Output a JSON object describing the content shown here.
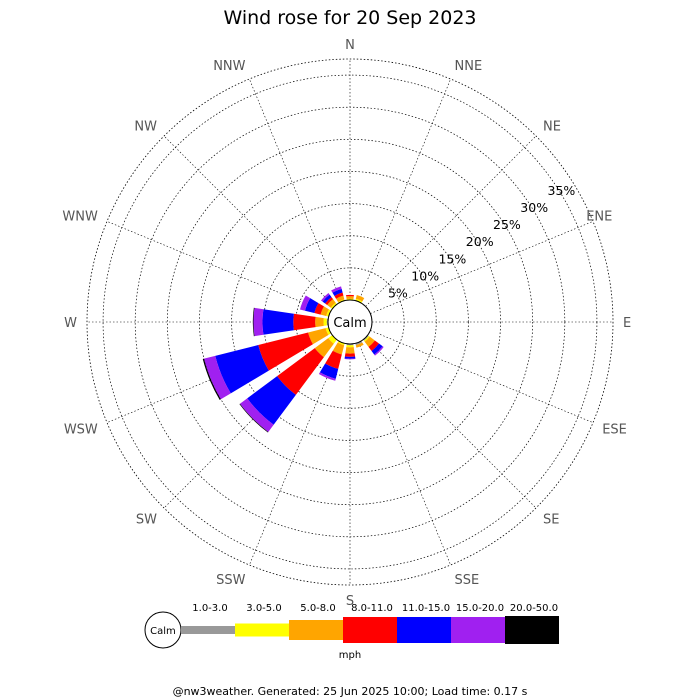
{
  "chart_data": {
    "type": "windrose",
    "title": "Wind rose for 20 Sep 2023",
    "directions": [
      "N",
      "NNE",
      "NE",
      "ENE",
      "E",
      "ESE",
      "SE",
      "SSE",
      "S",
      "SSW",
      "SW",
      "WSW",
      "W",
      "WNW",
      "NW",
      "NNW"
    ],
    "ring_labels": [
      "5%",
      "10%",
      "15%",
      "20%",
      "25%",
      "30%",
      "35%"
    ],
    "ring_values": [
      5,
      10,
      15,
      20,
      25,
      30,
      35
    ],
    "calm_label": "Calm",
    "unit": "mph",
    "speed_bins": [
      {
        "label": "1.0-3.0",
        "color": "#999999"
      },
      {
        "label": "3.0-5.0",
        "color": "#ffff00"
      },
      {
        "label": "5.0-8.0",
        "color": "#ffa500"
      },
      {
        "label": "8.0-11.0",
        "color": "#ff0000"
      },
      {
        "label": "11.0-15.0",
        "color": "#0000ff"
      },
      {
        "label": "15.0-20.0",
        "color": "#a020f0"
      },
      {
        "label": "20.0-50.0",
        "color": "#000000"
      }
    ],
    "frequencies": {
      "N": [
        0.0,
        0.2,
        0.4,
        0.2,
        0.0,
        0.0,
        0.0
      ],
      "NNE": [
        0.0,
        0.3,
        0.6,
        0.0,
        0.0,
        0.0,
        0.0
      ],
      "NE": [
        0.0,
        0.0,
        0.0,
        0.0,
        0.0,
        0.0,
        0.0
      ],
      "ENE": [
        0.0,
        0.0,
        0.0,
        0.0,
        0.0,
        0.0,
        0.0
      ],
      "E": [
        0.0,
        0.0,
        0.0,
        0.0,
        0.0,
        0.0,
        0.0
      ],
      "ESE": [
        0.0,
        0.0,
        0.0,
        0.0,
        0.0,
        0.0,
        0.0
      ],
      "SE": [
        0.2,
        0.2,
        1.0,
        0.8,
        0.7,
        0.2,
        0.0
      ],
      "SSE": [
        0.3,
        0.0,
        0.4,
        0.0,
        0.0,
        0.0,
        0.0
      ],
      "S": [
        0.2,
        0.3,
        1.0,
        0.5,
        0.3,
        0.1,
        0.0
      ],
      "SSW": [
        0.0,
        0.3,
        1.5,
        2.3,
        1.6,
        0.3,
        0.0
      ],
      "SW": [
        0.0,
        0.8,
        2.6,
        7.3,
        5.8,
        1.4,
        0.1
      ],
      "WSW": [
        0.0,
        0.5,
        2.8,
        8.0,
        6.9,
        1.8,
        0.2
      ],
      "W": [
        0.2,
        0.5,
        1.3,
        3.4,
        4.8,
        1.4,
        0.1
      ],
      "WNW": [
        0.0,
        0.4,
        0.9,
        1.0,
        1.5,
        0.8,
        0.0
      ],
      "NW": [
        0.0,
        0.3,
        0.7,
        0.4,
        0.5,
        0.3,
        0.0
      ],
      "NNW": [
        0.0,
        0.2,
        0.6,
        0.5,
        0.6,
        0.4,
        0.0
      ]
    }
  },
  "footer": "@nw3weather. Generated: 25 Jun 2025 10:00; Load time: 0.17 s"
}
